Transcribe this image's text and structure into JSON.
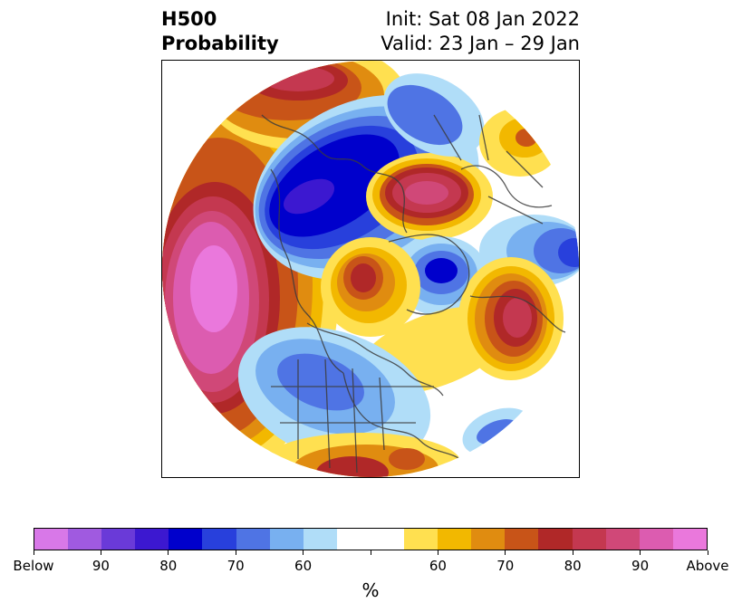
{
  "header": {
    "title_line1": "H500",
    "title_line2": "Probability",
    "init_text": "Init: Sat 08 Jan 2022",
    "valid_text": "Valid: 23 Jan – 29 Jan"
  },
  "colorbar": {
    "unit": "%",
    "colors": [
      "#d878e8",
      "#a05ae0",
      "#6a3ad8",
      "#3c18d0",
      "#0000cc",
      "#2840dc",
      "#4f74e4",
      "#78b0f0",
      "#b0ddf8",
      "#ffffff",
      "#ffffff",
      "#ffe050",
      "#f2b800",
      "#e08c10",
      "#c85418",
      "#b02828",
      "#c43850",
      "#d04878",
      "#dc5cb0",
      "#ea78dc"
    ],
    "labels": [
      "Below",
      "90",
      "80",
      "70",
      "60",
      "60",
      "70",
      "80",
      "90",
      "Above"
    ]
  },
  "map": {
    "projection": "north-polar-stereographic",
    "field": "500 hPa height anomaly probability"
  }
}
